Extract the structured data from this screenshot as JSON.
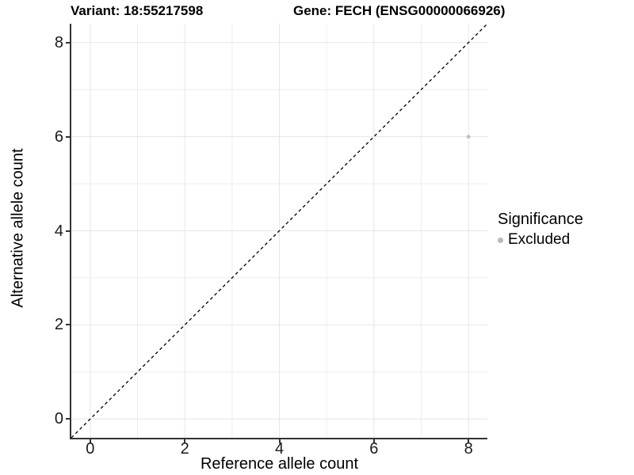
{
  "chart_data": {
    "type": "scatter",
    "title_left": "Variant: 18:55217598",
    "title_right": "Gene: FECH (ENSG00000066926)",
    "xlabel": "Reference allele count",
    "ylabel": "Alternative allele count",
    "xlim": [
      -0.4,
      8.4
    ],
    "ylim": [
      -0.4,
      8.4
    ],
    "xticks": [
      0,
      2,
      4,
      6,
      8
    ],
    "yticks": [
      0,
      2,
      4,
      6,
      8
    ],
    "minor_xticks": [
      1,
      3,
      5,
      7
    ],
    "minor_yticks": [
      1,
      3,
      5,
      7
    ],
    "grid": true,
    "points": [
      {
        "x": 8,
        "y": 6,
        "series": "Excluded",
        "color": "#bebebe",
        "radius": 2.4
      }
    ],
    "reference_line": {
      "type": "identity",
      "style": "dashed",
      "color": "#000000"
    },
    "legend": {
      "title": "Significance",
      "position": "right",
      "entries": [
        {
          "label": "Excluded",
          "color": "#b9b9b9"
        }
      ]
    }
  },
  "colors": {
    "grid_major": "#e6e6e6",
    "grid_minor": "#ededed",
    "axis_line": "#333333",
    "axis_text": "#1a1a1a",
    "background": "#ffffff"
  }
}
